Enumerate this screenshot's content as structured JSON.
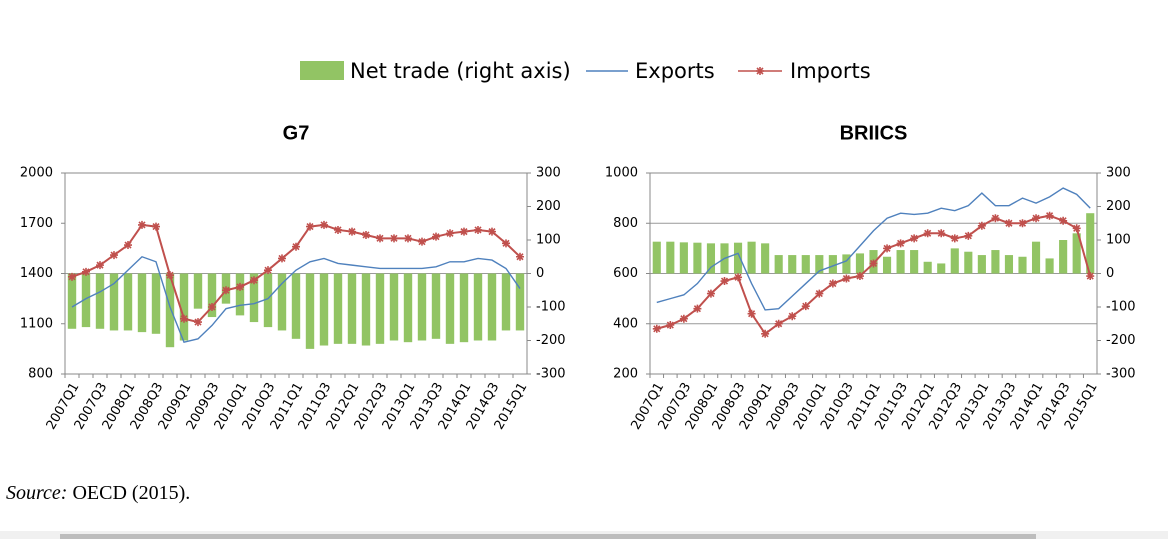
{
  "chart_data": [
    {
      "type": "combo",
      "title": "G7",
      "categories": [
        "2007Q1",
        null,
        "2007Q3",
        null,
        "2008Q1",
        null,
        "2008Q3",
        null,
        "2009Q1",
        null,
        "2009Q3",
        null,
        "2010Q1",
        null,
        "2010Q3",
        null,
        "2011Q1",
        null,
        "2011Q3",
        null,
        "2012Q1",
        null,
        "2012Q3",
        null,
        "2013Q1",
        null,
        "2013Q3",
        null,
        "2014Q1",
        null,
        "2014Q3",
        null,
        "2015Q1"
      ],
      "ylim": [
        800,
        2000
      ],
      "yticks": [
        800,
        1100,
        1400,
        1700,
        2000
      ],
      "y2lim": [
        -300,
        300
      ],
      "y2ticks": [
        -300,
        -200,
        -100,
        0,
        100,
        200,
        300
      ],
      "grid": false,
      "series": [
        {
          "name": "Net trade (right axis)",
          "kind": "bar",
          "axis": "y2",
          "color": "#92c464",
          "values": [
            -165,
            -160,
            -165,
            -170,
            -170,
            -175,
            -180,
            -220,
            -200,
            -105,
            -130,
            -90,
            -125,
            -145,
            -160,
            -170,
            -195,
            -225,
            -215,
            -210,
            -210,
            -215,
            -210,
            -200,
            -205,
            -200,
            -195,
            -210,
            -205,
            -200,
            -200,
            -170,
            -170
          ]
        },
        {
          "name": "Exports",
          "kind": "line",
          "color": "#4f81bd",
          "values": [
            1200,
            1250,
            1290,
            1340,
            1420,
            1500,
            1470,
            1200,
            990,
            1010,
            1090,
            1190,
            1210,
            1220,
            1250,
            1340,
            1420,
            1470,
            1490,
            1460,
            1450,
            1440,
            1430,
            1430,
            1430,
            1430,
            1440,
            1470,
            1470,
            1490,
            1480,
            1430,
            1310
          ]
        },
        {
          "name": "Imports",
          "kind": "line",
          "marker": true,
          "color": "#c0504d",
          "values": [
            1380,
            1410,
            1450,
            1510,
            1570,
            1690,
            1680,
            1390,
            1130,
            1110,
            1200,
            1300,
            1320,
            1360,
            1420,
            1490,
            1560,
            1680,
            1690,
            1660,
            1650,
            1630,
            1610,
            1610,
            1610,
            1590,
            1620,
            1640,
            1650,
            1660,
            1650,
            1580,
            1500
          ]
        }
      ]
    },
    {
      "type": "combo",
      "title": "BRIICS",
      "categories": [
        "2007Q1",
        null,
        "2007Q3",
        null,
        "2008Q1",
        null,
        "2008Q3",
        null,
        "2009Q1",
        null,
        "2009Q3",
        null,
        "2010Q1",
        null,
        "2010Q3",
        null,
        "2011Q1",
        null,
        "2011Q3",
        null,
        "2012Q1",
        null,
        "2012Q3",
        null,
        "2013Q1",
        null,
        "2013Q3",
        null,
        "2014Q1",
        null,
        "2014Q3",
        null,
        "2015Q1"
      ],
      "ylim": [
        200,
        1000
      ],
      "yticks": [
        200,
        400,
        600,
        800,
        1000
      ],
      "y2lim": [
        -300,
        300
      ],
      "y2ticks": [
        -300,
        -200,
        -100,
        0,
        100,
        200,
        300
      ],
      "grid": true,
      "series": [
        {
          "kind": "bar",
          "axis": "y2",
          "color": "#92c464",
          "values": [
            95,
            95,
            93,
            92,
            90,
            90,
            92,
            95,
            90,
            55,
            55,
            55,
            55,
            55,
            57,
            60,
            70,
            50,
            70,
            70,
            35,
            30,
            75,
            65,
            55,
            70,
            55,
            50,
            95,
            45,
            100,
            120,
            180
          ]
        },
        {
          "kind": "line",
          "color": "#4f81bd",
          "values": [
            485,
            500,
            515,
            560,
            625,
            660,
            680,
            560,
            455,
            460,
            510,
            560,
            610,
            630,
            650,
            710,
            770,
            820,
            840,
            835,
            840,
            860,
            850,
            870,
            920,
            870,
            870,
            900,
            880,
            905,
            940,
            915,
            860
          ]
        },
        {
          "kind": "line",
          "marker": true,
          "color": "#c0504d",
          "values": [
            380,
            395,
            420,
            460,
            520,
            570,
            585,
            440,
            360,
            400,
            430,
            470,
            520,
            560,
            580,
            590,
            640,
            700,
            720,
            740,
            760,
            760,
            740,
            750,
            790,
            820,
            800,
            800,
            820,
            830,
            810,
            780,
            590
          ]
        }
      ]
    }
  ],
  "source": {
    "label": "Source:",
    "text": "OECD (2015)."
  }
}
